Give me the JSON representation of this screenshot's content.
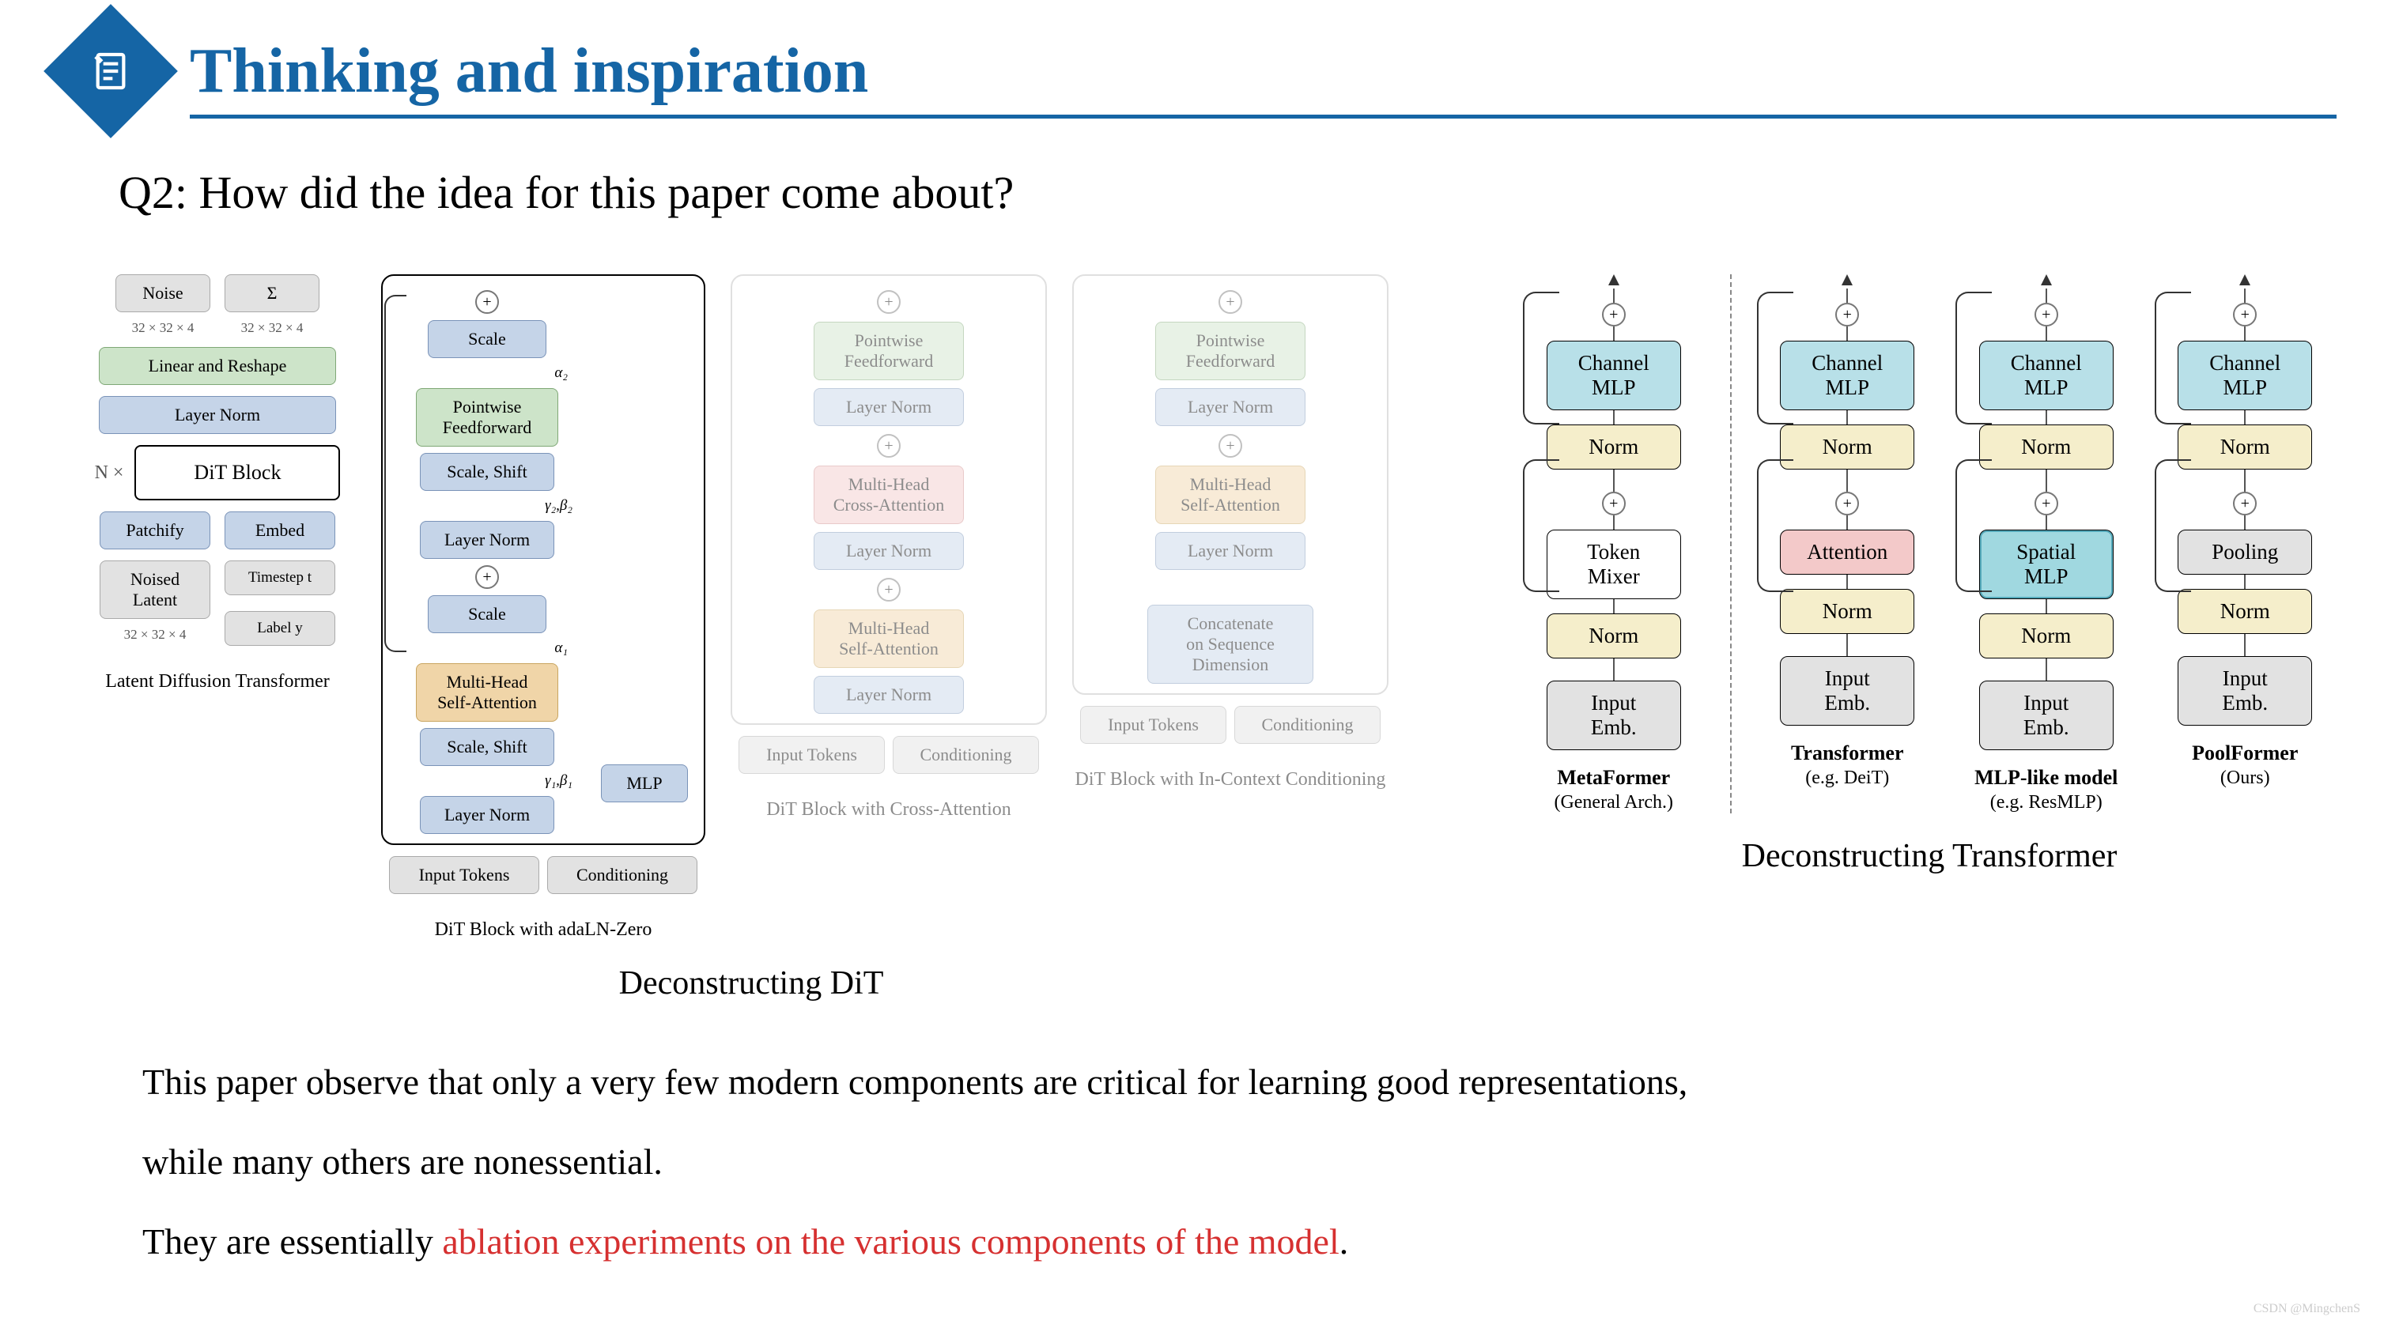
{
  "title": "Thinking and inspiration",
  "question": "Q2: How did the idea for this paper come about?",
  "caption_left": "Deconstructing DiT",
  "caption_right": "Deconstructing Transformer",
  "colors": {
    "accent": "#1565a5",
    "red": "#d63030",
    "blue": "#c5d4e8",
    "green": "#cde4c9",
    "orange": "#f0d5a8",
    "grey": "#e2e2e2",
    "red_box": "#f3c9c9",
    "yellow": "#f5eecb",
    "cyan": "#b8e0e8"
  },
  "ldt": {
    "label": "Latent Diffusion Transformer",
    "nx": "N ×",
    "noise": "Noise",
    "noise_dim": "32 × 32 × 4",
    "sigma": "Σ",
    "sigma_dim": "32 × 32 × 4",
    "linear": "Linear and Reshape",
    "ln": "Layer Norm",
    "block": "DiT Block",
    "patchify": "Patchify",
    "embed": "Embed",
    "noised": "Noised\nLatent",
    "noised_dim": "32 × 32 × 4",
    "ts": "Timestep t",
    "lbl": "Label y"
  },
  "dit_adaln": {
    "label": "DiT Block with adaLN-Zero",
    "scale": "Scale",
    "pw": "Pointwise\nFeedforward",
    "ss": "Scale, Shift",
    "ln": "Layer Norm",
    "mhsa": "Multi-Head\nSelf-Attention",
    "input": "Input Tokens",
    "cond": "Conditioning",
    "mlp": "MLP",
    "a2": "α₂",
    "g2b2": "γ₂,β₂",
    "a1": "α₁",
    "g1b1": "γ₁,β₁"
  },
  "dit_cross": {
    "label": "DiT Block with Cross-Attention",
    "pw": "Pointwise\nFeedforward",
    "ln": "Layer Norm",
    "mhca": "Multi-Head\nCross-Attention",
    "mhsa": "Multi-Head\nSelf-Attention",
    "input": "Input Tokens",
    "cond": "Conditioning"
  },
  "dit_ic": {
    "label": "DiT Block with In-Context Conditioning",
    "pw": "Pointwise\nFeedforward",
    "ln": "Layer Norm",
    "mhsa": "Multi-Head\nSelf-Attention",
    "concat": "Concatenate\non Sequence\nDimension",
    "input": "Input Tokens",
    "cond": "Conditioning"
  },
  "mf": {
    "cols": [
      {
        "title": "MetaFormer",
        "sub": "(General Arch.)",
        "mixer": "Token\nMixer",
        "mixer_style": "dashed"
      },
      {
        "title": "Transformer",
        "sub": "(e.g. DeiT)",
        "mixer": "Attention",
        "mixer_style": "red"
      },
      {
        "title": "MLP-like model",
        "sub": "(e.g. ResMLP)",
        "mixer": "Spatial\nMLP",
        "mixer_style": "teal"
      },
      {
        "title": "PoolFormer",
        "sub": "(Ours)",
        "mixer": "Pooling",
        "mixer_style": "grey"
      }
    ],
    "channel": "Channel\nMLP",
    "norm": "Norm",
    "input": "Input\nEmb."
  },
  "body": {
    "p1": "This paper observe that only a very few modern components are critical for learning good representations,",
    "p2": "while many others are nonessential.",
    "p3a": "They are essentially ",
    "p3b": "ablation experiments on the various components of the model",
    "p3c": "."
  },
  "watermark": "CSDN @MingchenS"
}
